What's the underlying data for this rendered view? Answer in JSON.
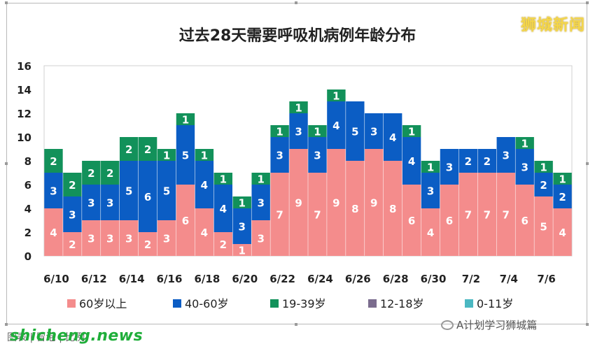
{
  "brand_label": "狮城新闻",
  "watermark": "shicheng.news",
  "source_account": "A计划学习狮城篇",
  "footer_text": "图表 | 冒泡 | 比例",
  "chart_data": {
    "type": "bar",
    "stacked": true,
    "title": "过去28天需要呼吸机病例年龄分布",
    "categories": [
      "6/10",
      "6/11",
      "6/12",
      "6/13",
      "6/14",
      "6/15",
      "6/16",
      "6/17",
      "6/18",
      "6/19",
      "6/20",
      "6/21",
      "6/22",
      "6/23",
      "6/24",
      "6/25",
      "6/26",
      "6/27",
      "6/28",
      "6/29",
      "6/30",
      "7/1",
      "7/2",
      "7/3",
      "7/4",
      "7/5",
      "7/6",
      "7/7"
    ],
    "x_tick_labels": [
      "6/10",
      "6/12",
      "6/14",
      "6/16",
      "6/18",
      "6/20",
      "6/22",
      "6/24",
      "6/26",
      "6/28",
      "6/30",
      "7/2",
      "7/4",
      "7/6"
    ],
    "series": [
      {
        "name": "60岁以上",
        "color": "#f48c8c",
        "values": [
          4,
          2,
          3,
          3,
          3,
          2,
          3,
          6,
          4,
          2,
          1,
          3,
          7,
          9,
          7,
          9,
          8,
          9,
          8,
          6,
          4,
          6,
          7,
          7,
          7,
          6,
          5,
          4
        ]
      },
      {
        "name": "40-60岁",
        "color": "#0b5dc4",
        "values": [
          3,
          3,
          3,
          3,
          5,
          6,
          5,
          5,
          4,
          4,
          3,
          3,
          3,
          3,
          3,
          4,
          5,
          3,
          4,
          4,
          3,
          3,
          2,
          2,
          3,
          3,
          2,
          2
        ]
      },
      {
        "name": "19-39岁",
        "color": "#12915a",
        "values": [
          2,
          2,
          2,
          2,
          2,
          2,
          1,
          1,
          1,
          1,
          1,
          1,
          1,
          1,
          1,
          1,
          0,
          0,
          0,
          1,
          1,
          0,
          0,
          0,
          0,
          1,
          1,
          1
        ]
      },
      {
        "name": "12-18岁",
        "color": "#7b6c8e",
        "values": [
          0,
          0,
          0,
          0,
          0,
          0,
          0,
          0,
          0,
          0,
          0,
          0,
          0,
          0,
          0,
          0,
          0,
          0,
          0,
          0,
          0,
          0,
          0,
          0,
          0,
          0,
          0,
          0
        ]
      },
      {
        "name": "0-11岁",
        "color": "#4bb8c2",
        "values": [
          0,
          0,
          0,
          0,
          0,
          0,
          0,
          0,
          0,
          0,
          0,
          0,
          0,
          0,
          0,
          0,
          0,
          0,
          0,
          0,
          0,
          0,
          0,
          0,
          0,
          0,
          0,
          0
        ]
      }
    ],
    "ylim": [
      0,
      16
    ],
    "y_ticks": [
      0,
      2,
      4,
      6,
      8,
      10,
      12,
      14,
      16
    ],
    "grid": false,
    "data_labels": true,
    "legend_position": "bottom"
  }
}
